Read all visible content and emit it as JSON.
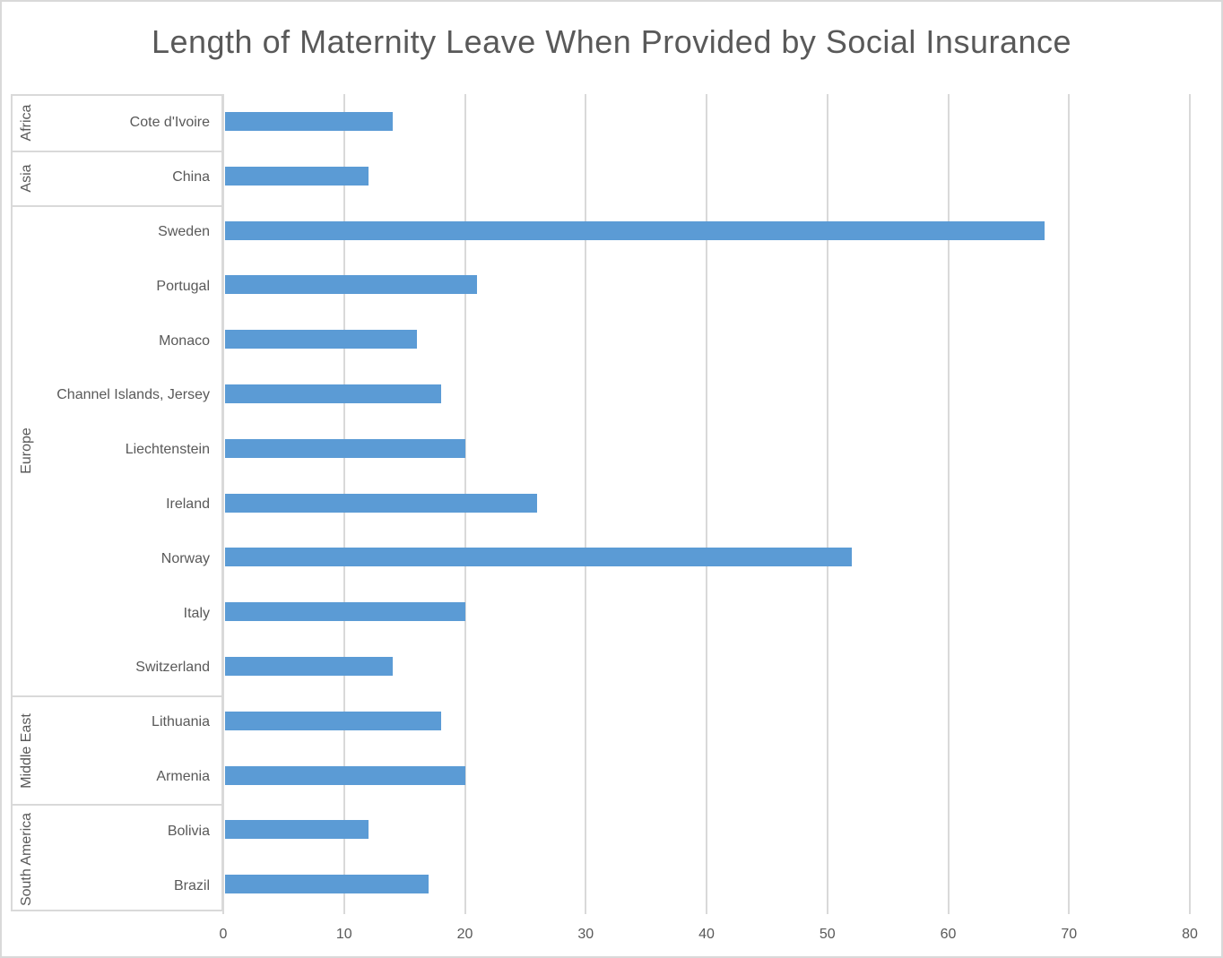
{
  "title": "Length of Maternity Leave When Provided by Social Insurance",
  "colors": {
    "bar": "#5b9bd5",
    "gridline": "#d9d9d9",
    "box_border": "#d9d9d9",
    "figure_border": "#d9d9d9",
    "text": "#595959"
  },
  "x_axis": {
    "tick_labels": [
      "0",
      "10",
      "20",
      "30",
      "40",
      "50",
      "60",
      "70",
      "80"
    ]
  },
  "chart_data": {
    "type": "bar",
    "orientation": "horizontal",
    "title": "Length of Maternity Leave When Provided by Social Insurance",
    "xlabel": "",
    "ylabel": "",
    "xlim": [
      0,
      80
    ],
    "x_ticks": [
      0,
      10,
      20,
      30,
      40,
      50,
      60,
      70,
      80
    ],
    "grid": true,
    "legend": false,
    "groups": [
      {
        "region": "Africa",
        "countries": [
          {
            "label": "Cote d'Ivoire",
            "value": 14
          }
        ]
      },
      {
        "region": "Asia",
        "countries": [
          {
            "label": "China",
            "value": 12
          }
        ]
      },
      {
        "region": "Europe",
        "countries": [
          {
            "label": "Sweden",
            "value": 68
          },
          {
            "label": "Portugal",
            "value": 21
          },
          {
            "label": "Monaco",
            "value": 16
          },
          {
            "label": "Channel Islands, Jersey",
            "value": 18
          },
          {
            "label": "Liechtenstein",
            "value": 20
          },
          {
            "label": "Ireland",
            "value": 26
          },
          {
            "label": "Norway",
            "value": 52
          },
          {
            "label": "Italy",
            "value": 20
          },
          {
            "label": "Switzerland",
            "value": 14
          }
        ]
      },
      {
        "region": "Middle East",
        "countries": [
          {
            "label": "Lithuania",
            "value": 18
          },
          {
            "label": "Armenia",
            "value": 20
          }
        ]
      },
      {
        "region": "South America",
        "countries": [
          {
            "label": "Bolivia",
            "value": 12
          },
          {
            "label": "Brazil",
            "value": 17
          }
        ]
      }
    ],
    "categories": [
      "Cote d'Ivoire",
      "China",
      "Sweden",
      "Portugal",
      "Monaco",
      "Channel Islands, Jersey",
      "Liechtenstein",
      "Ireland",
      "Norway",
      "Italy",
      "Switzerland",
      "Lithuania",
      "Armenia",
      "Bolivia",
      "Brazil"
    ],
    "values": [
      14,
      12,
      68,
      21,
      16,
      18,
      20,
      26,
      52,
      20,
      14,
      18,
      20,
      12,
      17
    ]
  }
}
